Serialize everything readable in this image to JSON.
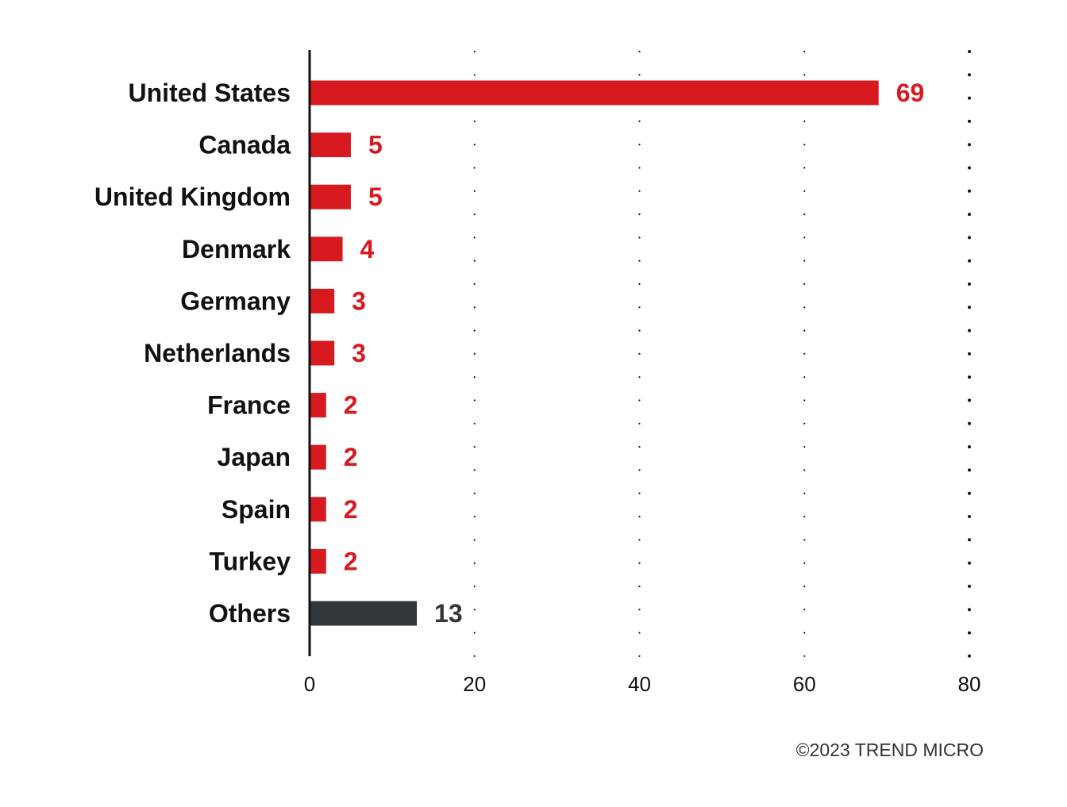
{
  "chart_data": {
    "type": "bar",
    "orientation": "horizontal",
    "categories": [
      "United States",
      "Canada",
      "United Kingdom",
      "Denmark",
      "Germany",
      "Netherlands",
      "France",
      "Japan",
      "Spain",
      "Turkey",
      "Others"
    ],
    "values": [
      69,
      5,
      5,
      4,
      3,
      3,
      2,
      2,
      2,
      2,
      13
    ],
    "value_labels": [
      "69",
      "5",
      "5",
      "4",
      "3",
      "3",
      "2",
      "2",
      "2",
      "2",
      "13"
    ],
    "xlim": [
      0,
      80
    ],
    "xticks": [
      0,
      20,
      40,
      60,
      80
    ],
    "xtick_labels": [
      "0",
      "20",
      "40",
      "60",
      "80"
    ],
    "grid": "dotted vertical",
    "title": "",
    "xlabel": "",
    "ylabel": "",
    "colors": {
      "bar": "#d71920",
      "others_bar": "#31363b",
      "value_label": "#d71920",
      "others_value_label": "#31363b",
      "axis": "#111111",
      "grid": "#111111"
    }
  },
  "footer": {
    "copyright": "©2023 TREND MICRO"
  }
}
